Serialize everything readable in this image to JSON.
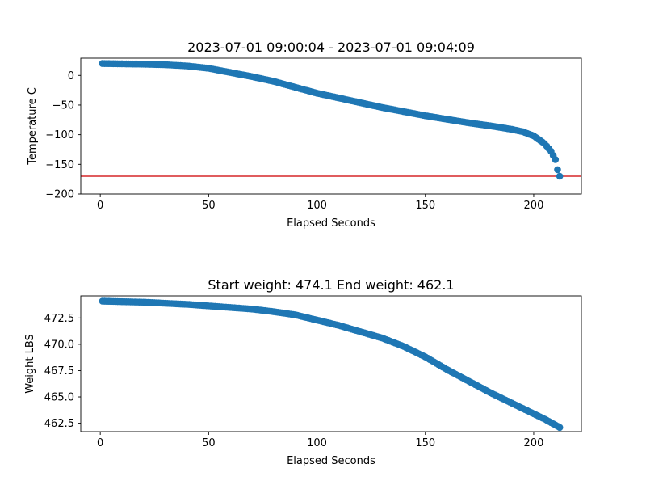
{
  "chart_data": [
    {
      "type": "scatter",
      "title": "2023-07-01 09:00:04 - 2023-07-01 09:04:09",
      "xlabel": "Elapsed Seconds",
      "ylabel": "Temperature C",
      "xlim": [
        -9,
        222
      ],
      "ylim": [
        -200,
        29
      ],
      "xticks": [
        0,
        50,
        100,
        150,
        200
      ],
      "yticks": [
        0,
        -50,
        -100,
        -150,
        -200
      ],
      "marker_color": "#1f77b4",
      "reference_line": {
        "y": -170,
        "color": "#d62728"
      },
      "points": [
        [
          1,
          20
        ],
        [
          10,
          19.5
        ],
        [
          20,
          19
        ],
        [
          30,
          18
        ],
        [
          40,
          16
        ],
        [
          50,
          12
        ],
        [
          60,
          5
        ],
        [
          70,
          -2
        ],
        [
          80,
          -10
        ],
        [
          90,
          -20
        ],
        [
          100,
          -30
        ],
        [
          110,
          -38
        ],
        [
          120,
          -46
        ],
        [
          130,
          -54
        ],
        [
          140,
          -61
        ],
        [
          150,
          -68
        ],
        [
          160,
          -74
        ],
        [
          170,
          -80
        ],
        [
          180,
          -85
        ],
        [
          190,
          -91
        ],
        [
          195,
          -95
        ],
        [
          200,
          -102
        ],
        [
          205,
          -115
        ],
        [
          208,
          -128
        ],
        [
          210,
          -142
        ],
        [
          211,
          -159
        ],
        [
          212,
          -170
        ]
      ]
    },
    {
      "type": "scatter",
      "title": "Start weight: 474.1 End weight: 462.1",
      "xlabel": "Elapsed Seconds",
      "ylabel": "Weight LBS",
      "xlim": [
        -9,
        222
      ],
      "ylim": [
        461.7,
        474.6
      ],
      "xticks": [
        0,
        50,
        100,
        150,
        200
      ],
      "yticks": [
        462.5,
        465.0,
        467.5,
        470.0,
        472.5
      ],
      "ytick_labels": [
        "462.5",
        "465.0",
        "467.5",
        "470.0",
        "472.5"
      ],
      "marker_color": "#1f77b4",
      "points": [
        [
          1,
          474.1
        ],
        [
          10,
          474.05
        ],
        [
          20,
          474.0
        ],
        [
          30,
          473.9
        ],
        [
          40,
          473.8
        ],
        [
          50,
          473.65
        ],
        [
          60,
          473.5
        ],
        [
          70,
          473.35
        ],
        [
          80,
          473.1
        ],
        [
          90,
          472.8
        ],
        [
          100,
          472.3
        ],
        [
          110,
          471.8
        ],
        [
          120,
          471.2
        ],
        [
          130,
          470.6
        ],
        [
          140,
          469.8
        ],
        [
          150,
          468.8
        ],
        [
          160,
          467.6
        ],
        [
          170,
          466.5
        ],
        [
          180,
          465.4
        ],
        [
          190,
          464.4
        ],
        [
          200,
          463.4
        ],
        [
          205,
          462.9
        ],
        [
          212,
          462.1
        ]
      ]
    }
  ]
}
